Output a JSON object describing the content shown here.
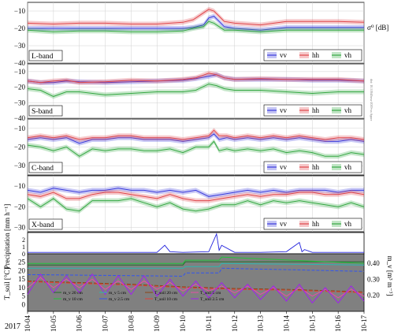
{
  "year_label": "2017",
  "side_note": "doi: 10.5194/hess-2019-xx figure",
  "colors": {
    "vv": "#3b3bdb",
    "hh": "#e0464b",
    "vh": "#35a843",
    "panel_bg": "#808080",
    "precip": "#2222dd",
    "grid": "#d0d0d0"
  },
  "chart_data": [
    {
      "type": "line",
      "title": "L-band",
      "panel_label": "L-band",
      "ylabel": "σ⁰ [dB]",
      "ylim": [
        -40,
        -5
      ],
      "yticks": [
        -10,
        -20,
        -30,
        -40
      ],
      "grid": true,
      "legend": {
        "entries": [
          "vv",
          "hh",
          "vh"
        ],
        "placement": "bottom-right"
      },
      "x": [
        0,
        1,
        2,
        3,
        4,
        5,
        6,
        6.4,
        6.8,
        7.0,
        7.2,
        7.4,
        7.6,
        8,
        9,
        10,
        11,
        12,
        13
      ],
      "series": [
        {
          "name": "vv",
          "values": [
            -20,
            -20,
            -20,
            -20,
            -20,
            -20,
            -20,
            -19.5,
            -18,
            -14,
            -13,
            -16,
            -19,
            -20,
            -21,
            -19.5,
            -19.5,
            -19.5,
            -19.5
          ]
        },
        {
          "name": "hh",
          "values": [
            -17,
            -17.5,
            -17,
            -17,
            -17.5,
            -17.5,
            -16.5,
            -15,
            -11,
            -9,
            -10,
            -13,
            -16,
            -17,
            -18,
            -16,
            -16,
            -16,
            -16.5
          ]
        },
        {
          "name": "vh",
          "values": [
            -21,
            -22,
            -21.5,
            -21.5,
            -22,
            -22,
            -21.5,
            -20,
            -19,
            -16,
            -17,
            -19,
            -21,
            -21,
            -22,
            -21,
            -21,
            -21,
            -21
          ]
        }
      ]
    },
    {
      "type": "line",
      "title": "S-band",
      "panel_label": "S-band",
      "ylabel": "",
      "ylim": [
        -40,
        -5
      ],
      "yticks": [
        -10,
        -20,
        -30,
        -40
      ],
      "grid": true,
      "legend": {
        "entries": [
          "vv",
          "hh",
          "vh"
        ],
        "placement": "bottom-right"
      },
      "x": [
        0,
        0.5,
        1,
        1.5,
        2,
        3,
        4,
        5,
        6,
        6.5,
        7,
        7.3,
        7.6,
        8,
        9,
        10,
        11,
        12,
        13
      ],
      "series": [
        {
          "name": "vv",
          "values": [
            -16,
            -17,
            -17,
            -16,
            -16.5,
            -17,
            -16.5,
            -16,
            -15.5,
            -14.5,
            -13,
            -12,
            -14,
            -15,
            -15,
            -15,
            -15.5,
            -15.5,
            -16
          ]
        },
        {
          "name": "hh",
          "values": [
            -16,
            -17,
            -16,
            -15.5,
            -17,
            -16.5,
            -15.5,
            -16,
            -15,
            -14,
            -11,
            -12,
            -14,
            -15,
            -14.5,
            -15,
            -15,
            -15,
            -16
          ]
        },
        {
          "name": "vh",
          "values": [
            -21,
            -22,
            -26,
            -23,
            -23,
            -25,
            -24,
            -23,
            -23,
            -22,
            -18,
            -19,
            -21,
            -22,
            -22,
            -23,
            -24,
            -23,
            -23
          ]
        }
      ]
    },
    {
      "type": "line",
      "title": "C-band",
      "panel_label": "C-band",
      "ylabel": "",
      "ylim": [
        -35,
        -5
      ],
      "yticks": [
        -10,
        -20,
        -30
      ],
      "grid": true,
      "legend": {
        "entries": [
          "vv",
          "hh",
          "vh"
        ],
        "placement": "bottom-right"
      },
      "x": [
        0,
        0.5,
        1,
        1.5,
        2,
        2.5,
        3,
        3.5,
        4,
        4.5,
        5,
        5.5,
        6,
        6.5,
        7,
        7.2,
        7.4,
        7.7,
        8,
        8.5,
        9,
        9.5,
        10,
        10.5,
        11,
        11.5,
        12,
        12.5,
        13
      ],
      "series": [
        {
          "name": "vv",
          "values": [
            -16,
            -15,
            -16,
            -15,
            -18,
            -16,
            -16,
            -15,
            -15,
            -16,
            -16,
            -16,
            -17,
            -16,
            -15,
            -13,
            -16,
            -15,
            -16,
            -15,
            -16,
            -15,
            -16,
            -15,
            -16,
            -17,
            -17,
            -16,
            -17
          ]
        },
        {
          "name": "hh",
          "values": [
            -15,
            -14,
            -15,
            -14,
            -16,
            -15,
            -15,
            -14,
            -14,
            -15,
            -15,
            -15,
            -16,
            -15,
            -14,
            -11,
            -14,
            -14,
            -15,
            -14,
            -15,
            -14,
            -15,
            -14,
            -15,
            -16,
            -15,
            -15,
            -16
          ]
        },
        {
          "name": "vh",
          "values": [
            -19,
            -20,
            -22,
            -20,
            -25,
            -21,
            -22,
            -21,
            -21,
            -22,
            -22,
            -21,
            -23,
            -20,
            -20,
            -17,
            -22,
            -21,
            -22,
            -21,
            -22,
            -21,
            -23,
            -22,
            -23,
            -25,
            -25,
            -23,
            -24
          ]
        }
      ]
    },
    {
      "type": "line",
      "title": "X-band",
      "panel_label": "X-band",
      "ylabel": "",
      "ylim": [
        -32,
        -5
      ],
      "yticks": [
        -10,
        -20,
        -30
      ],
      "grid": true,
      "legend": {
        "entries": [
          "vv",
          "hh",
          "vh"
        ],
        "placement": "bottom-right"
      },
      "x": [
        0,
        0.5,
        1,
        1.5,
        2,
        2.5,
        3,
        3.5,
        4,
        4.5,
        5,
        5.5,
        6,
        6.5,
        7,
        7.5,
        8,
        8.5,
        9,
        9.5,
        10,
        10.5,
        11,
        11.5,
        12,
        12.5,
        13
      ],
      "series": [
        {
          "name": "vv",
          "values": [
            -12,
            -13,
            -11,
            -12,
            -13,
            -12,
            -12,
            -11,
            -12,
            -12,
            -13,
            -12,
            -13,
            -12,
            -15,
            -14,
            -13,
            -12,
            -13,
            -12,
            -13,
            -12,
            -12,
            -12,
            -13,
            -12,
            -12
          ]
        },
        {
          "name": "hh",
          "values": [
            -14,
            -15,
            -13,
            -16,
            -16,
            -14,
            -13,
            -13,
            -14,
            -15,
            -16,
            -14,
            -16,
            -17,
            -17,
            -16,
            -15,
            -14,
            -15,
            -14,
            -14,
            -13,
            -13,
            -14,
            -14,
            -13,
            -14
          ]
        },
        {
          "name": "vh",
          "values": [
            -16,
            -20,
            -16,
            -21,
            -22,
            -17,
            -17,
            -17,
            -16,
            -18,
            -20,
            -18,
            -21,
            -22,
            -21,
            -19,
            -19,
            -17,
            -19,
            -17,
            -18,
            -17,
            -18,
            -19,
            -20,
            -18,
            -20
          ]
        }
      ]
    },
    {
      "type": "line",
      "title": "",
      "ylabel": "Precipitation [mm h⁻¹]",
      "ylim": [
        0,
        3
      ],
      "yticks": [
        0,
        1,
        2
      ],
      "grid": false,
      "x": [
        0,
        1,
        2,
        3,
        4,
        5,
        5.3,
        5.5,
        6,
        7,
        7.3,
        7.4,
        7.5,
        8,
        9,
        10,
        10.5,
        10.6,
        10.7,
        11,
        12,
        13
      ],
      "series": [
        {
          "name": "Precipitation",
          "values": [
            0.2,
            0.2,
            0.2,
            0.2,
            0.2,
            0.2,
            1.2,
            0.3,
            0.2,
            0.3,
            2.8,
            0.5,
            1.2,
            0.2,
            0.2,
            0.3,
            1.6,
            0.3,
            0.6,
            0.2,
            0.2,
            0.2
          ]
        }
      ]
    },
    {
      "type": "line",
      "title": "",
      "ylabel": "T_soil [°C]",
      "ylabel_right": "m_v [m³ m⁻³]",
      "ylim": [
        -4,
        30
      ],
      "yticks": [
        0,
        5,
        10,
        15,
        20,
        25
      ],
      "ylim_right": [
        0.1,
        0.46
      ],
      "yticks_right": [
        0.2,
        0.3,
        0.4
      ],
      "xlabels": [
        "10-04",
        "10-05",
        "10-06",
        "10-07",
        "10-08",
        "10-09",
        "10-10",
        "10-11",
        "10-12",
        "10-13",
        "10-14",
        "10-15",
        "10-16",
        "10-17"
      ],
      "legend": {
        "placement": "bottom-left",
        "entries": [
          "m_v 20 cm",
          "m_v 5 cm",
          "T_soil 20 cm",
          "T_soil 5 cm",
          "m_v 10 cm",
          "m_v 2.5 cm",
          "T_soil 10 cm",
          "T_soil 2.5 cm"
        ]
      },
      "mv_series": [
        {
          "name": "m_v 20 cm",
          "x": [
            0,
            6,
            6.1,
            13
          ],
          "values": [
            0.39,
            0.39,
            0.41,
            0.41
          ]
        },
        {
          "name": "m_v 10 cm",
          "x": [
            0,
            6,
            6.1,
            7.4,
            7.5,
            13
          ],
          "values": [
            0.4,
            0.4,
            0.42,
            0.42,
            0.44,
            0.4
          ]
        },
        {
          "name": "m_v 5 cm",
          "x": [
            0,
            6,
            6.1,
            7.4,
            7.5,
            13
          ],
          "values": [
            0.37,
            0.37,
            0.38,
            0.38,
            0.4,
            0.39
          ]
        },
        {
          "name": "m_v 2.5 cm",
          "x": [
            0,
            6,
            6.1,
            7.4,
            7.5,
            13
          ],
          "values": [
            0.33,
            0.32,
            0.34,
            0.34,
            0.37,
            0.35
          ]
        }
      ],
      "t_series": [
        {
          "name": "T_soil 20 cm",
          "x": [
            0,
            2,
            4,
            6,
            8,
            10,
            12,
            13
          ],
          "values": [
            14,
            13,
            12,
            10.5,
            9.5,
            9,
            8,
            7.5
          ]
        },
        {
          "name": "T_soil 10 cm",
          "x": [
            0,
            2,
            4,
            6,
            8,
            10,
            12,
            13
          ],
          "values": [
            13.5,
            12.5,
            11.5,
            10,
            9,
            8.5,
            7.5,
            7
          ]
        },
        {
          "name": "T_soil 5 cm",
          "x": [
            0,
            0.5,
            1,
            1.5,
            2,
            2.5,
            3,
            3.5,
            4,
            4.5,
            5,
            5.5,
            6,
            6.5,
            7,
            7.5,
            8,
            8.5,
            9,
            9.5,
            10,
            10.5,
            11,
            11.5,
            12,
            12.5,
            13
          ],
          "values": [
            10,
            16,
            10,
            15,
            10,
            15,
            9,
            14,
            9,
            14,
            9,
            13,
            8,
            12,
            8,
            11,
            7,
            11,
            6,
            10,
            5,
            10,
            5,
            9,
            4,
            9,
            5
          ]
        },
        {
          "name": "T_soil 2.5 cm",
          "x": [
            0,
            0.5,
            1,
            1.5,
            2,
            2.5,
            3,
            3.5,
            4,
            4.5,
            5,
            5.5,
            6,
            6.5,
            7,
            7.5,
            8,
            8.5,
            9,
            9.5,
            10,
            10.5,
            11,
            11.5,
            12,
            12.5,
            13
          ],
          "values": [
            6,
            18,
            7,
            17,
            7,
            18,
            6,
            17,
            6,
            17,
            5,
            15,
            5,
            14,
            4,
            13,
            4,
            12,
            3,
            11,
            2,
            12,
            1,
            10,
            1,
            11,
            2
          ]
        }
      ]
    }
  ]
}
